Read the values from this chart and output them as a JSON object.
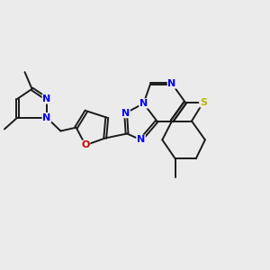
{
  "bg_color": "#ebebeb",
  "bond_color": "#1a1a1a",
  "N_color": "#0000ee",
  "O_color": "#cc0000",
  "S_color": "#b8b800",
  "lw": 1.4,
  "dbo": 0.048,
  "fs": 8.0,
  "xlim": [
    0.5,
    10.5
  ],
  "ylim": [
    1.0,
    9.0
  ]
}
